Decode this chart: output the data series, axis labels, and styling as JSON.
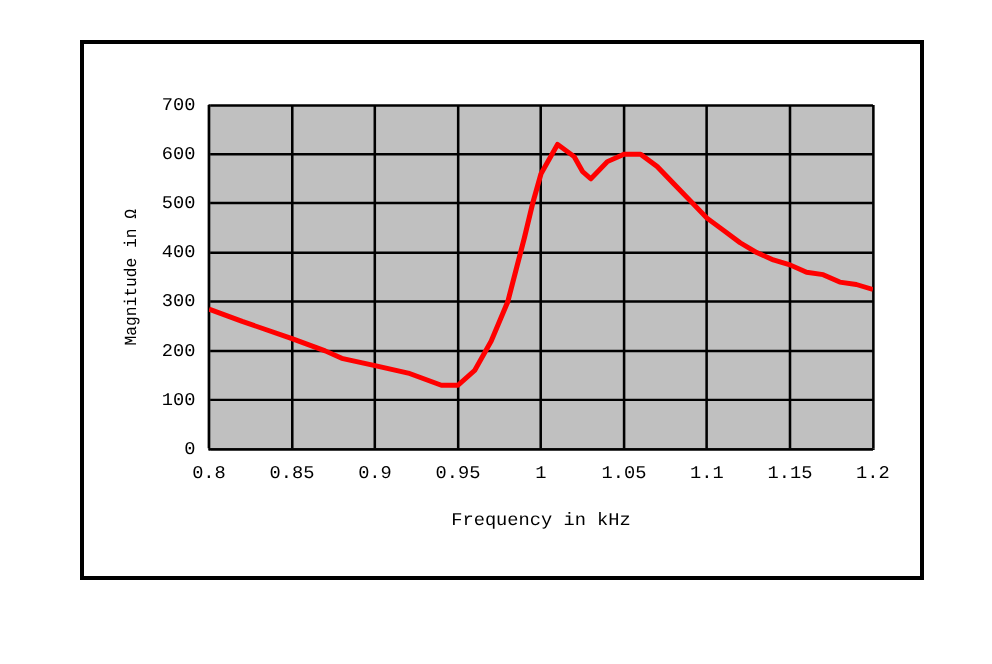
{
  "chart_data": {
    "type": "line",
    "xlabel": "Frequency in kHz",
    "ylabel": "Magnitude in Ω",
    "x": [
      0.8,
      0.82,
      0.85,
      0.87,
      0.88,
      0.9,
      0.92,
      0.94,
      0.95,
      0.96,
      0.97,
      0.98,
      0.99,
      0.995,
      1.0,
      1.01,
      1.02,
      1.025,
      1.03,
      1.04,
      1.05,
      1.06,
      1.07,
      1.08,
      1.09,
      1.1,
      1.11,
      1.12,
      1.13,
      1.14,
      1.15,
      1.16,
      1.17,
      1.18,
      1.19,
      1.2
    ],
    "series": [
      {
        "color": "#ff0000",
        "values": [
          285,
          260,
          225,
          200,
          185,
          170,
          155,
          130,
          130,
          160,
          220,
          300,
          430,
          500,
          560,
          620,
          595,
          565,
          550,
          585,
          600,
          600,
          575,
          540,
          505,
          470,
          445,
          420,
          400,
          385,
          375,
          360,
          355,
          340,
          335,
          325
        ]
      }
    ],
    "xlim": [
      0.8,
      1.2
    ],
    "xticks": [
      0.8,
      0.85,
      0.9,
      0.95,
      1,
      1.05,
      1.1,
      1.15,
      1.2
    ],
    "ylim": [
      0,
      700
    ],
    "yticks": [
      0,
      100,
      200,
      300,
      400,
      500,
      600,
      700
    ],
    "grid": true,
    "legend": false,
    "marker": "none",
    "line_style": "solid"
  }
}
